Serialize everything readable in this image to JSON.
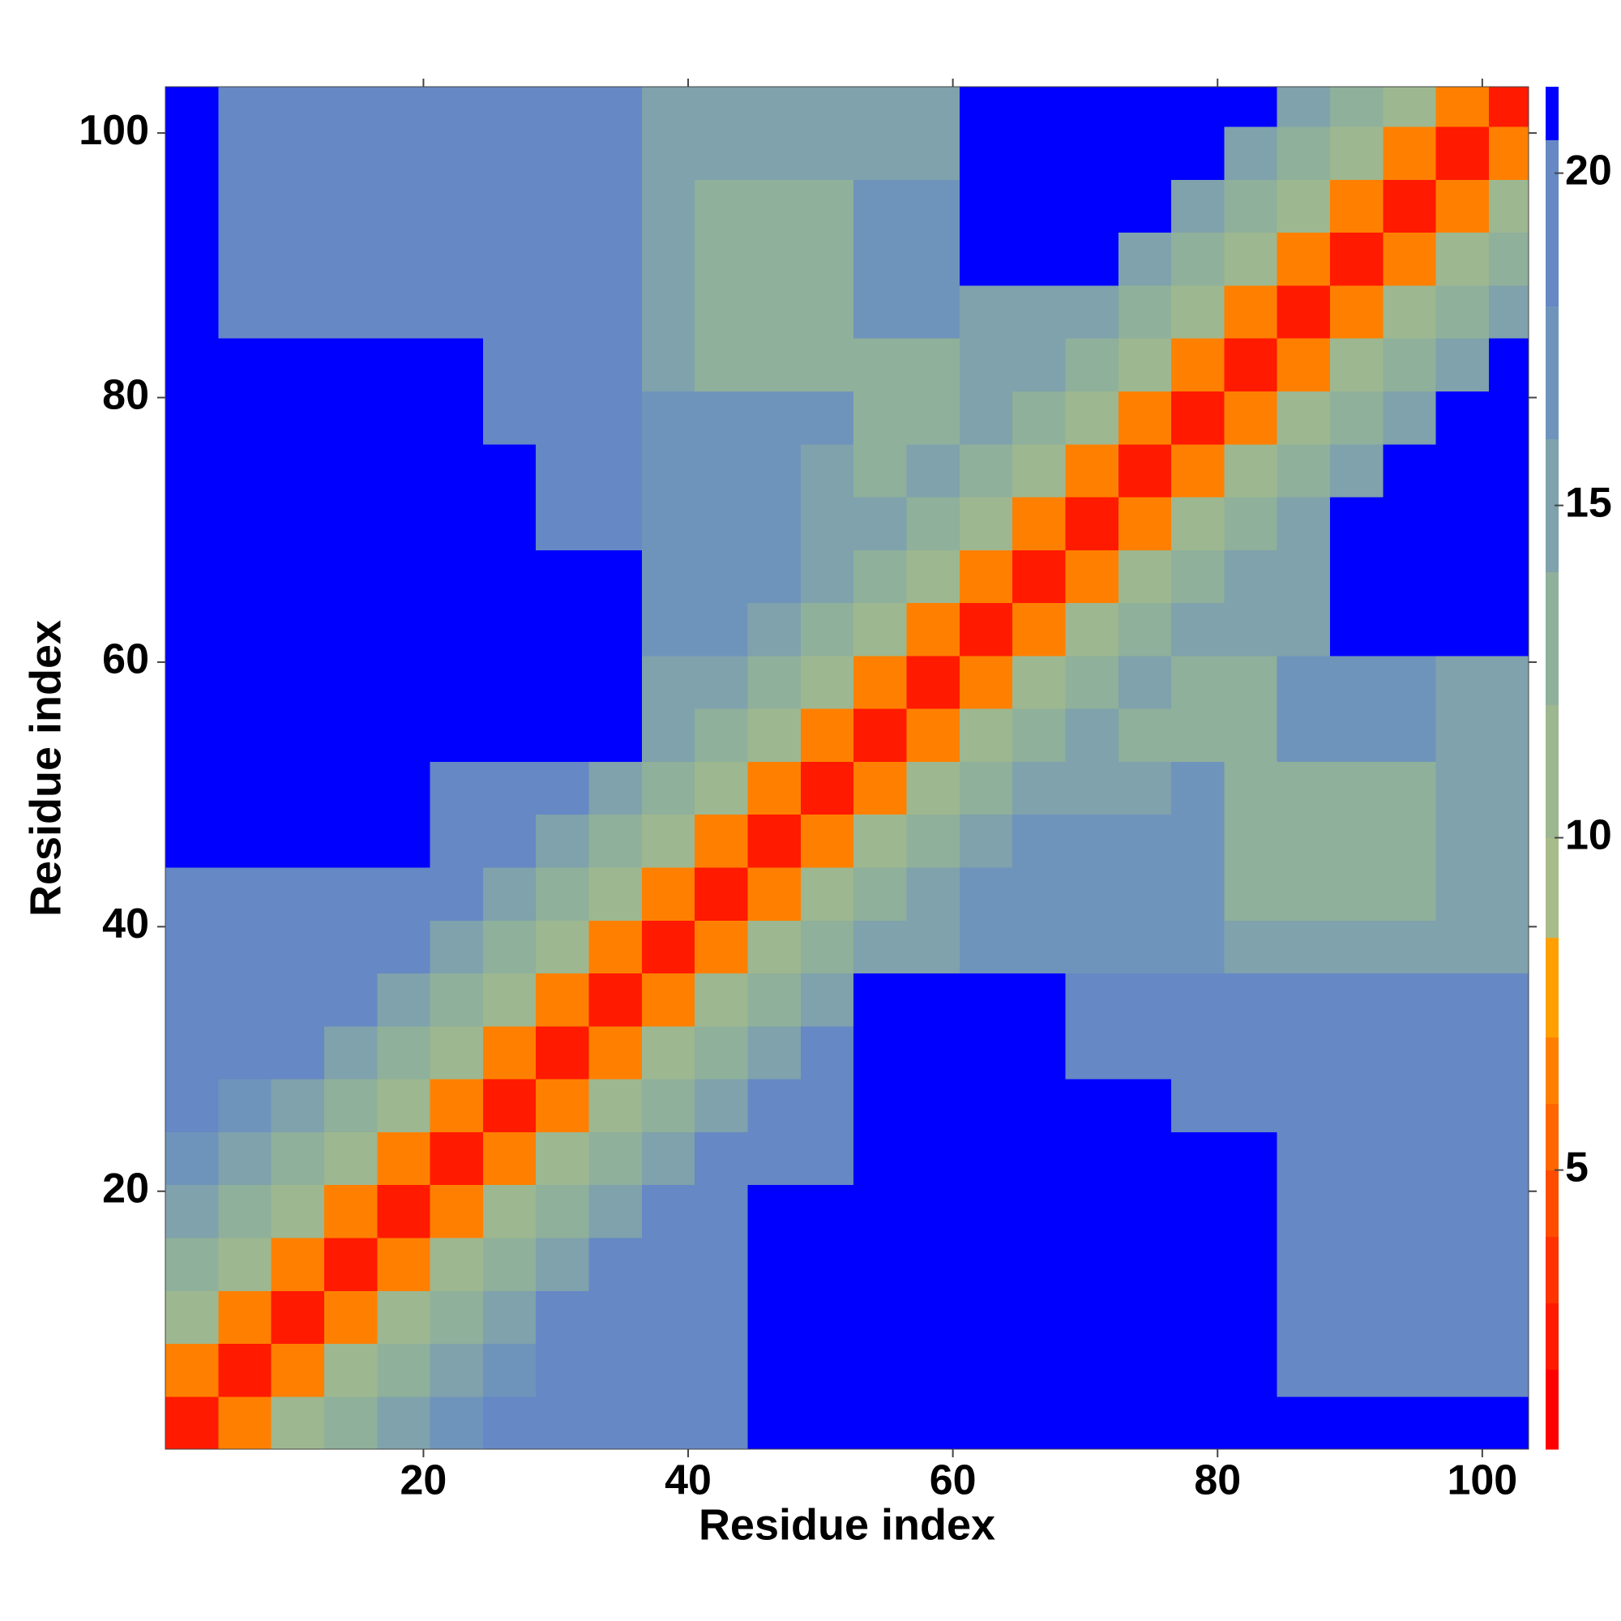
{
  "chart_data": {
    "type": "heatmap",
    "xlabel": "Residue index",
    "ylabel": "Residue index",
    "xlim": [
      0.5,
      103.5
    ],
    "ylim": [
      0.5,
      103.5
    ],
    "xticks": [
      20,
      40,
      60,
      80,
      100
    ],
    "yticks": [
      20,
      40,
      60,
      80,
      100
    ],
    "xbins": [
      0.5,
      4.5,
      8.5,
      12.5,
      16.5,
      20.5,
      24.5,
      28.5,
      32.5,
      36.5,
      40.5,
      44.5,
      48.5,
      52.5,
      56.5,
      60.5,
      64.5,
      68.5,
      72.5,
      76.5,
      80.5,
      84.5,
      88.5,
      92.5,
      96.5,
      100.5,
      103.5
    ],
    "ybins": [
      0.5,
      4.5,
      8.5,
      12.5,
      16.5,
      20.5,
      24.5,
      28.5,
      32.5,
      36.5,
      40.5,
      44.5,
      48.5,
      52.5,
      56.5,
      60.5,
      64.5,
      68.5,
      72.5,
      76.5,
      80.5,
      84.5,
      88.5,
      92.5,
      96.5,
      100.5,
      103.5
    ],
    "z": [
      [
        2.5,
        6.5,
        10,
        13,
        15.5,
        17,
        18,
        20,
        20,
        20,
        20,
        21,
        21,
        21,
        21,
        21,
        21,
        21,
        21,
        21,
        21,
        21,
        21,
        21,
        21,
        21
      ],
      [
        6.5,
        2.5,
        6.5,
        10,
        13,
        15.5,
        17,
        18,
        18,
        18,
        18,
        21,
        21,
        21,
        21,
        21,
        21,
        21,
        21,
        21,
        21,
        19.5,
        19.5,
        19.5,
        19.5,
        19.5
      ],
      [
        10,
        6.5,
        2.5,
        6.5,
        10,
        13,
        15.5,
        18,
        18,
        18,
        18,
        21,
        21,
        21,
        21,
        21,
        21,
        21,
        21,
        21,
        21,
        19.5,
        19.5,
        19.5,
        19.5,
        19.5
      ],
      [
        13,
        10,
        6.5,
        2.5,
        6.5,
        10,
        13,
        15.5,
        18,
        18,
        18,
        21,
        21,
        21,
        21,
        21,
        21,
        21,
        21,
        21,
        21,
        19.5,
        19.5,
        19.5,
        19.5,
        19.5
      ],
      [
        15.5,
        13,
        10,
        6.5,
        2.5,
        6.5,
        10,
        13,
        15.5,
        18,
        18,
        21,
        21,
        21,
        21,
        21,
        21,
        21,
        21,
        21,
        21,
        19.5,
        19.5,
        19.5,
        19.5,
        19.5
      ],
      [
        17,
        15.5,
        13,
        10,
        6.5,
        2.5,
        6.5,
        10,
        13,
        15.5,
        18,
        19,
        19,
        21,
        21,
        21,
        21,
        21,
        21,
        21,
        21,
        19.5,
        19.5,
        19.5,
        19.5,
        19.5
      ],
      [
        18,
        17,
        15.5,
        13,
        10,
        6.5,
        2.5,
        6.5,
        10,
        13,
        15.5,
        19,
        19,
        21,
        21,
        21,
        21,
        21,
        21,
        18,
        18,
        18,
        18,
        18,
        18,
        18
      ],
      [
        20,
        18,
        18,
        15.5,
        13,
        10,
        6.5,
        2.5,
        6.5,
        10,
        13,
        15.5,
        19,
        20.5,
        20.5,
        20.5,
        20.5,
        18,
        18,
        18,
        18,
        18,
        18,
        18,
        18,
        18
      ],
      [
        20,
        18,
        18,
        18,
        15.5,
        13,
        10,
        6.5,
        2.5,
        6.5,
        10,
        13,
        15.5,
        20.5,
        20.5,
        20.5,
        20.5,
        18,
        18,
        18,
        18,
        18,
        18,
        18,
        18,
        18
      ],
      [
        20,
        18,
        18,
        18,
        18,
        15.5,
        13,
        10,
        6.5,
        2.5,
        6.5,
        10,
        13,
        15.5,
        14,
        17,
        17,
        17,
        17,
        17,
        15,
        15,
        15,
        15,
        15,
        15
      ],
      [
        20,
        18,
        18,
        18,
        18,
        18,
        15.5,
        13,
        10,
        6.5,
        2.5,
        6.5,
        10,
        13,
        15.5,
        17,
        17,
        17,
        17,
        17,
        12,
        12,
        12,
        12,
        15,
        15
      ],
      [
        21,
        21,
        21,
        21,
        21,
        19,
        19,
        15.5,
        13,
        10,
        6.5,
        2.5,
        6.5,
        10,
        13,
        15.5,
        17,
        17,
        17,
        17,
        12,
        12,
        12,
        12,
        15,
        15
      ],
      [
        21,
        21,
        21,
        21,
        21,
        19,
        19,
        19,
        15.5,
        13,
        10,
        6.5,
        2.5,
        6.5,
        10,
        13,
        15.5,
        14,
        15,
        16,
        12,
        12,
        12,
        12,
        15,
        15
      ],
      [
        21,
        21,
        21,
        21,
        21,
        21,
        21,
        20.5,
        20.5,
        15.5,
        13,
        10,
        6.5,
        2.5,
        6.5,
        10,
        13,
        15.5,
        13,
        13,
        13,
        16,
        16,
        16,
        15,
        15
      ],
      [
        21,
        21,
        21,
        21,
        21,
        21,
        21,
        20.5,
        20.5,
        14,
        15.5,
        13,
        10,
        6.5,
        2.5,
        6.5,
        10,
        13,
        15.5,
        13,
        13,
        16,
        16,
        16,
        15,
        15
      ],
      [
        21,
        21,
        21,
        21,
        21,
        21,
        21,
        20.5,
        20.5,
        17,
        17,
        15.5,
        13,
        10,
        6.5,
        2.5,
        6.5,
        10,
        13,
        15.5,
        14,
        15,
        21,
        21,
        21,
        21
      ],
      [
        21,
        21,
        21,
        21,
        21,
        21,
        21,
        20.5,
        20.5,
        17,
        17,
        17,
        15.5,
        13,
        10,
        6.5,
        2.5,
        6.5,
        10,
        13,
        15.5,
        14,
        21,
        21,
        21,
        21
      ],
      [
        21,
        21,
        21,
        21,
        21,
        21,
        21,
        18,
        18,
        17,
        17,
        17,
        14,
        15.5,
        13,
        10,
        6.5,
        2.5,
        6.5,
        10,
        13,
        15.5,
        21,
        21,
        21,
        21
      ],
      [
        21,
        21,
        21,
        21,
        21,
        21,
        21,
        18,
        18,
        17,
        17,
        17,
        15,
        13,
        15.5,
        13,
        10,
        6.5,
        2.5,
        6.5,
        10,
        13,
        15.5,
        21,
        21,
        21
      ],
      [
        21,
        21,
        21,
        21,
        21,
        21,
        18,
        18,
        18,
        17,
        17,
        17,
        16,
        13,
        13,
        15.5,
        13,
        10,
        6.5,
        2.5,
        6.5,
        10,
        13,
        15.5,
        21,
        21
      ],
      [
        21,
        21,
        21,
        21,
        21,
        21,
        18,
        18,
        18,
        15,
        12,
        12,
        12,
        13,
        13,
        14,
        15.5,
        13,
        10,
        6.5,
        2.5,
        6.5,
        10,
        13,
        15.5,
        21
      ],
      [
        21,
        19.5,
        19.5,
        19.5,
        19.5,
        19.5,
        18,
        18,
        18,
        15,
        12,
        12,
        12,
        16,
        16,
        15,
        14,
        15.5,
        13,
        10,
        6.5,
        2.5,
        6.5,
        10,
        13,
        15.5
      ],
      [
        21,
        19.5,
        19.5,
        19.5,
        19.5,
        19.5,
        18,
        18,
        18,
        15,
        12,
        12,
        12,
        16,
        16,
        21,
        21,
        21,
        15.5,
        13,
        10,
        6.5,
        2.5,
        6.5,
        10,
        13
      ],
      [
        21,
        19.5,
        19.5,
        19.5,
        19.5,
        19.5,
        18,
        18,
        18,
        15,
        12,
        12,
        12,
        16,
        16,
        21,
        21,
        21,
        21,
        15.5,
        13,
        10,
        6.5,
        2.5,
        6.5,
        10
      ],
      [
        21,
        19.5,
        19.5,
        19.5,
        19.5,
        19.5,
        18,
        18,
        18,
        15,
        15,
        15,
        15,
        15,
        15,
        21,
        21,
        21,
        21,
        21,
        15.5,
        13,
        10,
        6.5,
        2.5,
        6.5
      ],
      [
        21,
        19.5,
        19.5,
        19.5,
        19.5,
        19.5,
        18,
        18,
        18,
        15,
        15,
        15,
        15,
        15,
        15,
        21,
        21,
        21,
        21,
        21,
        21,
        15.5,
        13,
        10,
        6.5,
        2.5
      ]
    ],
    "colorbar": {
      "levels": [
        0.8,
        2,
        3,
        4,
        5,
        6,
        7,
        8.5,
        10,
        12,
        14,
        16,
        18,
        20.5,
        21.3
      ],
      "colors": [
        "#ff0000",
        "#ff1a00",
        "#ff3300",
        "#ff4d00",
        "#ff6600",
        "#ff8000",
        "#ffa000",
        "#a8bc8a",
        "#9db790",
        "#8fb09a",
        "#7fa2ac",
        "#6f94bb",
        "#6688c4",
        "#0000ff"
      ],
      "ticks": [
        5,
        10,
        15,
        20
      ]
    }
  }
}
